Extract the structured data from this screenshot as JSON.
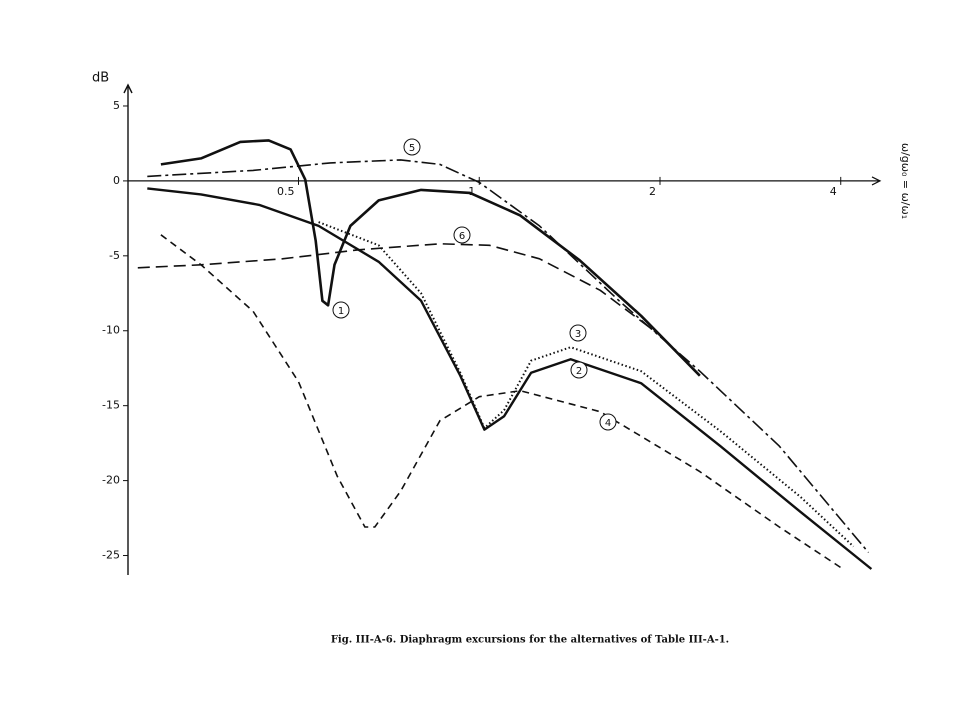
{
  "chart_data": {
    "type": "line",
    "caption": "Fig. III-A-6. Diaphragm excursions for the alternatives of Table III-A-1.",
    "ylabel": "dB",
    "xlabel": "ω/gω₀ = ω/ω₁",
    "xscale": "log",
    "xlim": [
      0.26,
      4.65
    ],
    "xticks": [
      0.5,
      1,
      2,
      4
    ],
    "ylim": [
      -26.3,
      6.4
    ],
    "yticks": [
      5,
      0,
      -5,
      -10,
      -15,
      -20,
      -25
    ],
    "series": [
      {
        "name": "1",
        "color": "#111111",
        "dash": "solid",
        "width": 2.6,
        "x": [
          0.295,
          0.344,
          0.4,
          0.446,
          0.485,
          0.513,
          0.534,
          0.548,
          0.56,
          0.574,
          0.61,
          0.68,
          0.8,
          0.965,
          1.17,
          1.47,
          1.86,
          2.33
        ],
        "values": [
          1.1,
          1.5,
          2.6,
          2.7,
          2.1,
          0.1,
          -4,
          -8,
          -8.3,
          -5.6,
          -3,
          -1.3,
          -0.6,
          -0.8,
          -2.3,
          -5.3,
          -9,
          -13
        ]
      },
      {
        "name": "2",
        "color": "#111111",
        "dash": "solid",
        "width": 2.4,
        "x": [
          0.28,
          0.344,
          0.43,
          0.54,
          0.68,
          0.8,
          0.93,
          1.02,
          1.1,
          1.22,
          1.42,
          1.86,
          2.52,
          3.43,
          4.5
        ],
        "values": [
          -0.5,
          -0.9,
          -1.6,
          -3,
          -5.4,
          -8,
          -13,
          -16.6,
          -15.7,
          -12.8,
          -11.9,
          -13.5,
          -17.7,
          -22.1,
          -25.9
        ]
      },
      {
        "name": "3",
        "color": "#111111",
        "dash": "dotted",
        "width": 2,
        "x": [
          0.54,
          0.68,
          0.8,
          0.93,
          1.02,
          1.1,
          1.22,
          1.42,
          1.86,
          2.52,
          3.43,
          4.2
        ],
        "values": [
          -2.75,
          -4.3,
          -7.5,
          -12.8,
          -16.5,
          -15.3,
          -12,
          -11.1,
          -12.7,
          -16.7,
          -21.1,
          -24.4
        ]
      },
      {
        "name": "4",
        "color": "#111111",
        "dash": "dashed",
        "width": 1.6,
        "x": [
          0.295,
          0.344,
          0.42,
          0.5,
          0.58,
          0.645,
          0.67,
          0.74,
          0.86,
          1.0,
          1.17,
          1.59,
          2.33,
          3.16,
          4.0
        ],
        "values": [
          -3.6,
          -5.6,
          -8.7,
          -13.4,
          -19.7,
          -23.1,
          -23.1,
          -20.7,
          -16,
          -14.4,
          -14,
          -15.4,
          -19.4,
          -23.1,
          -25.8
        ]
      },
      {
        "name": "5",
        "color": "#111111",
        "dash": "dashdot",
        "width": 1.6,
        "x": [
          0.28,
          0.42,
          0.565,
          0.74,
          0.86,
          1.0,
          1.26,
          1.71,
          2.33,
          3.16,
          4.45
        ],
        "values": [
          0.3,
          0.7,
          1.2,
          1.4,
          1.1,
          -0.1,
          -3,
          -8,
          -12.7,
          -17.7,
          -24.8
        ]
      },
      {
        "name": "6",
        "color": "#111111",
        "dash": "longdash",
        "width": 1.6,
        "x": [
          0.27,
          0.344,
          0.47,
          0.63,
          0.86,
          1.04,
          1.26,
          1.59,
          2.0,
          2.33
        ],
        "values": [
          -5.8,
          -5.6,
          -5.2,
          -4.6,
          -4.2,
          -4.3,
          -5.2,
          -7.3,
          -10.3,
          -13
        ]
      }
    ]
  }
}
